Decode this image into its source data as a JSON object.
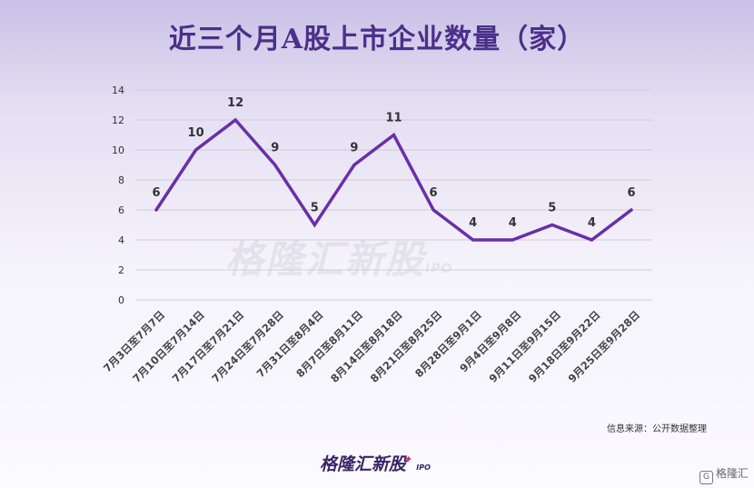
{
  "chart_data": {
    "type": "line",
    "title": "近三个月A股上市企业数量（家）",
    "categories": [
      "7月3日至7月7日",
      "7月10日至7月14日",
      "7月17日至7月21日",
      "7月24日至7月28日",
      "7月31日至8月4日",
      "8月7日至8月11日",
      "8月14日至8月18日",
      "8月21日至8月25日",
      "8月28日至9月1日",
      "9月4日至9月8日",
      "9月11日至9月15日",
      "9月18日至9月22日",
      "9月25日至9月28日"
    ],
    "series": [
      {
        "values": [
          6,
          10,
          12,
          9,
          5,
          9,
          11,
          6,
          4,
          4,
          5,
          4,
          6
        ]
      }
    ],
    "ylim": [
      0,
      14
    ],
    "yticks": [
      0,
      2,
      4,
      6,
      8,
      10,
      12,
      14
    ],
    "grid": true,
    "line_color": "#6a2fa8"
  },
  "footer": {
    "source": "信息来源：公开数据整理",
    "brand": "格隆汇新股",
    "brand_suffix": "IPO",
    "corner_logo": "格隆汇",
    "corner_icon": "G"
  },
  "watermark": {
    "text": "格隆汇新股",
    "suffix": "IPO"
  }
}
